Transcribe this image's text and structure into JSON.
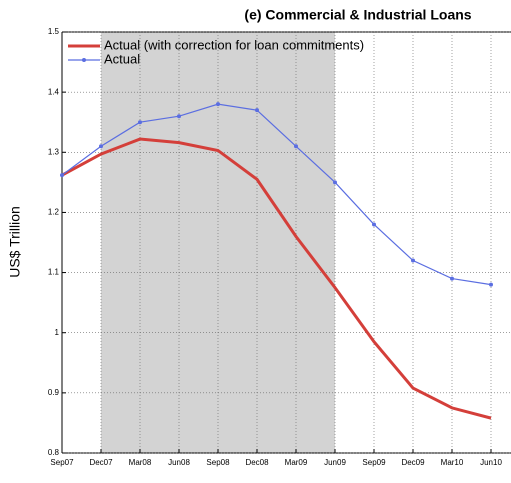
{
  "chart_data": {
    "type": "line",
    "title": "(e) Commercial & Industrial Loans",
    "y_label": "US$ Trillion",
    "categories": [
      "Sep07",
      "Dec07",
      "Mar08",
      "Jun08",
      "Sep08",
      "Dec08",
      "Mar09",
      "Jun09",
      "Sep09",
      "Dec09",
      "Mar10",
      "Jun10"
    ],
    "series": [
      {
        "name": "Actual (with correction for loan commitments)",
        "color": "#d43f3a",
        "marker": false,
        "values": [
          1.262,
          1.297,
          1.322,
          1.316,
          1.303,
          1.255,
          1.16,
          1.075,
          0.985,
          0.908,
          0.875,
          0.858
        ]
      },
      {
        "name": "Actual",
        "color": "#5b6ee1",
        "marker": true,
        "values": [
          1.262,
          1.31,
          1.35,
          1.36,
          1.38,
          1.37,
          1.31,
          1.25,
          1.18,
          1.12,
          1.09,
          1.08
        ]
      }
    ],
    "shaded_span": {
      "start": "Dec07",
      "end": "Jun09",
      "color": "#d3d3d3"
    },
    "ylim": [
      0.8,
      1.5
    ],
    "yticks": [
      0.8,
      0.9,
      1,
      1.1,
      1.2,
      1.3,
      1.4,
      1.5
    ],
    "grid": true,
    "legend": "upper-left"
  }
}
